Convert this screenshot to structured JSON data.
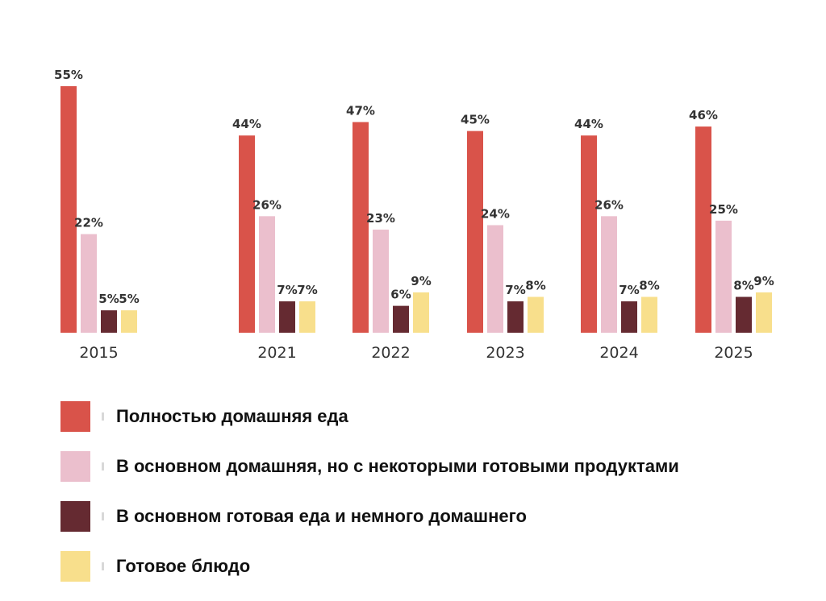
{
  "chart_data": {
    "type": "bar",
    "title": "",
    "xlabel": "",
    "ylabel": "",
    "ylim": [
      0,
      55
    ],
    "categories": [
      "2015",
      "2021",
      "2022",
      "2023",
      "2024",
      "2025"
    ],
    "series": [
      {
        "name": "Полностью домашняя еда",
        "color": "#d9534a",
        "values": [
          55,
          44,
          47,
          45,
          44,
          46
        ],
        "labels": [
          "55%",
          "44%",
          "47%",
          "45%",
          "44%",
          "46%"
        ]
      },
      {
        "name": "В основном домашняя, но с некоторыми готовыми продуктами",
        "color": "#ebbfcd",
        "values": [
          22,
          26,
          23,
          24,
          26,
          25
        ],
        "labels": [
          "22%",
          "26%",
          "23%",
          "24%",
          "26%",
          "25%"
        ]
      },
      {
        "name": "В основном готовая еда и немного  домашнего",
        "color": "#652a31",
        "values": [
          5,
          7,
          6,
          7,
          7,
          8
        ],
        "labels": [
          "5%",
          "7%",
          "6%",
          "7%",
          "7%",
          "8%"
        ]
      },
      {
        "name": "Готовое блюдо",
        "color": "#f8df8c",
        "values": [
          5,
          7,
          9,
          8,
          8,
          9
        ],
        "labels": [
          "5%",
          "7%",
          "9%",
          "8%",
          "8%",
          "9%"
        ]
      }
    ],
    "legend_position": "bottom-left",
    "grid": false
  }
}
